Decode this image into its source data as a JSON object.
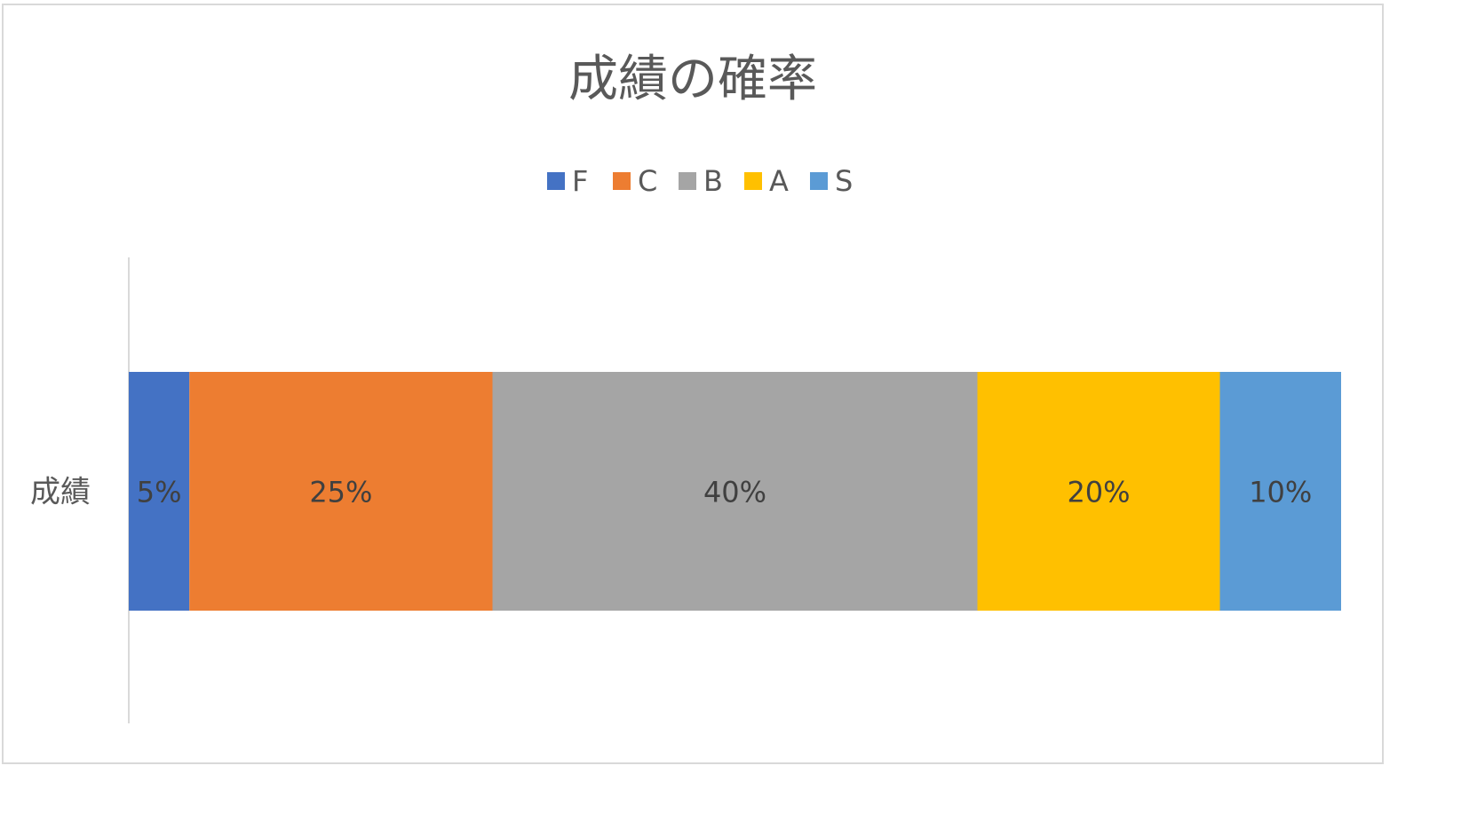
{
  "chart_data": {
    "type": "bar",
    "orientation": "horizontal",
    "stacked": "percent",
    "title": "成績の確率",
    "categories": [
      "成績"
    ],
    "series": [
      {
        "name": "F",
        "values": [
          5
        ],
        "color": "#4472C4",
        "label": "5%"
      },
      {
        "name": "C",
        "values": [
          25
        ],
        "color": "#ED7D31",
        "label": "25%"
      },
      {
        "name": "B",
        "values": [
          40
        ],
        "color": "#A5A5A5",
        "label": "40%"
      },
      {
        "name": "A",
        "values": [
          20
        ],
        "color": "#FFC000",
        "label": "20%"
      },
      {
        "name": "S",
        "values": [
          10
        ],
        "color": "#5B9BD5",
        "label": "10%"
      }
    ],
    "xlim": [
      0,
      100
    ],
    "legend": "top",
    "grid": false
  }
}
